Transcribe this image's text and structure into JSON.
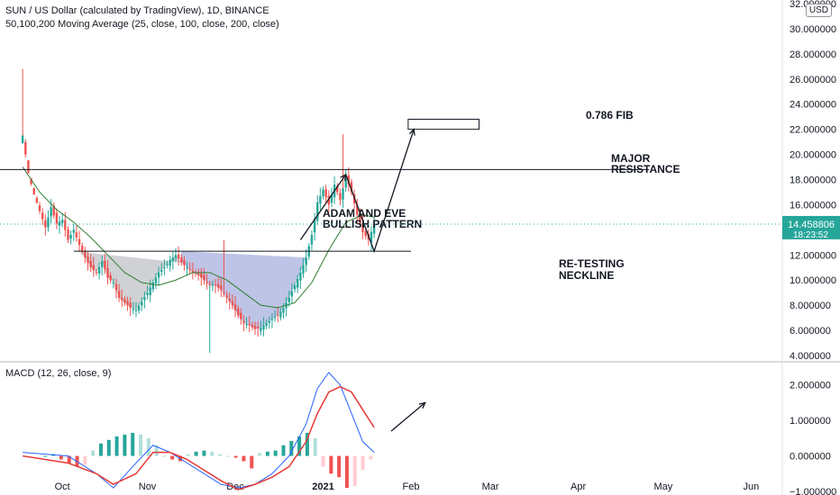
{
  "header": {
    "title": "SUN / US Dollar (calculated by TradingView), 1D, BINANCE",
    "indicator": "50,100,200 Moving Average (25, close, 100, close, 200, close)",
    "currency": "USD"
  },
  "price_tag": {
    "value": "14.458806",
    "countdown": "18:23:52"
  },
  "annotations": {
    "pattern": [
      "ADAM AND EVE",
      "BULLISH PATTERN"
    ],
    "resistance": [
      "MAJOR",
      "RESISTANCE"
    ],
    "neckline": [
      "RE-TESTING",
      "NECKLINE"
    ],
    "fib": "0.786 FIB"
  },
  "colors": {
    "up": "#26a69a",
    "down": "#ef5350",
    "ma": "#2e7d32",
    "macd": "#2962ff",
    "signal": "#e53935"
  },
  "chart_data": [
    {
      "type": "candlestick",
      "ylim": [
        3.5,
        32
      ],
      "yticks": [
        "4.000000",
        "6.000000",
        "8.000000",
        "10.000000",
        "12.000000",
        "14.000000",
        "16.000000",
        "18.000000",
        "20.000000",
        "22.000000",
        "24.000000",
        "26.000000",
        "28.000000",
        "30.000000",
        "32.000000"
      ],
      "ytick_values": [
        4,
        6,
        8,
        10,
        12,
        14,
        16,
        18,
        20,
        22,
        24,
        26,
        28,
        30,
        32
      ],
      "xticks": [
        "Oct",
        "Nov",
        "Dec",
        "2021",
        "Feb",
        "Mar",
        "Apr",
        "May",
        "Jun"
      ],
      "xtick_days": [
        8,
        38,
        69,
        100,
        131,
        159,
        190,
        220,
        251
      ],
      "x_range_days": [
        -14,
        262
      ],
      "close_path": [
        [
          -6,
          21.5
        ],
        [
          -4,
          18.5
        ],
        [
          -2,
          16.8
        ],
        [
          0,
          15.5
        ],
        [
          2,
          14.2
        ],
        [
          4,
          15.8
        ],
        [
          6,
          14.5
        ],
        [
          8,
          14.8
        ],
        [
          10,
          13.2
        ],
        [
          12,
          14.0
        ],
        [
          14,
          12.8
        ],
        [
          16,
          11.8
        ],
        [
          18,
          11.0
        ],
        [
          20,
          10.6
        ],
        [
          22,
          11.5
        ],
        [
          24,
          10.2
        ],
        [
          26,
          9.8
        ],
        [
          28,
          8.6
        ],
        [
          30,
          8.2
        ],
        [
          32,
          7.8
        ],
        [
          34,
          7.6
        ],
        [
          36,
          8.3
        ],
        [
          38,
          9.0
        ],
        [
          40,
          9.8
        ],
        [
          42,
          10.6
        ],
        [
          44,
          11.0
        ],
        [
          46,
          11.6
        ],
        [
          48,
          12.0
        ],
        [
          50,
          11.4
        ],
        [
          52,
          11.0
        ],
        [
          54,
          10.6
        ],
        [
          56,
          10.4
        ],
        [
          58,
          10.0
        ],
        [
          60,
          9.6
        ],
        [
          62,
          9.6
        ],
        [
          64,
          9.2
        ],
        [
          66,
          8.6
        ],
        [
          68,
          8.0
        ],
        [
          70,
          7.2
        ],
        [
          72,
          6.6
        ],
        [
          74,
          6.4
        ],
        [
          76,
          6.1
        ],
        [
          78,
          6.2
        ],
        [
          80,
          6.6
        ],
        [
          82,
          6.9
        ],
        [
          84,
          7.2
        ],
        [
          86,
          7.8
        ],
        [
          88,
          8.6
        ],
        [
          90,
          9.6
        ],
        [
          92,
          10.6
        ],
        [
          94,
          11.8
        ],
        [
          96,
          13.6
        ],
        [
          98,
          16.2
        ],
        [
          100,
          17.2
        ],
        [
          102,
          16.0
        ],
        [
          104,
          17.6
        ],
        [
          106,
          16.4
        ],
        [
          108,
          18.2
        ],
        [
          110,
          17.0
        ],
        [
          112,
          15.2
        ],
        [
          114,
          13.8
        ],
        [
          116,
          13.2
        ],
        [
          118,
          14.46
        ]
      ],
      "spikes": [
        {
          "day": -6,
          "high": 26.8
        },
        {
          "day": 107,
          "high": 21.6
        },
        {
          "day": 65,
          "high": 13.2
        },
        {
          "day": 60,
          "low": 4.2
        }
      ],
      "moving_average": [
        [
          -6,
          19.0
        ],
        [
          0,
          17.0
        ],
        [
          6,
          15.6
        ],
        [
          12,
          14.6
        ],
        [
          18,
          13.4
        ],
        [
          24,
          12.0
        ],
        [
          30,
          10.6
        ],
        [
          36,
          9.8
        ],
        [
          42,
          9.6
        ],
        [
          48,
          10.0
        ],
        [
          54,
          10.6
        ],
        [
          60,
          10.6
        ],
        [
          66,
          10.0
        ],
        [
          72,
          9.0
        ],
        [
          78,
          8.0
        ],
        [
          84,
          7.8
        ],
        [
          90,
          8.2
        ],
        [
          96,
          9.8
        ],
        [
          102,
          12.4
        ],
        [
          108,
          14.6
        ],
        [
          114,
          15.2
        ],
        [
          118,
          15.0
        ]
      ],
      "lines": [
        {
          "y": 18.8,
          "day_start": -15,
          "day_end": 215
        },
        {
          "y": 12.3,
          "day_start": 12,
          "day_end": 131
        }
      ],
      "fib_box": {
        "y_low": 22.0,
        "y_high": 22.8,
        "day_start": 130,
        "day_end": 155
      }
    },
    {
      "type": "macd",
      "title": "MACD (12, 26, close, 9)",
      "ylim": [
        -1.05,
        2.6
      ],
      "yticks": [
        "2.000000",
        "1.000000",
        "0.000000",
        "−1.000000"
      ],
      "ytick_values": [
        2,
        1,
        0,
        -1
      ],
      "macd": [
        [
          -6,
          0.1
        ],
        [
          10,
          0.0
        ],
        [
          20,
          -0.5
        ],
        [
          26,
          -0.9
        ],
        [
          34,
          -0.2
        ],
        [
          40,
          0.3
        ],
        [
          46,
          0.1
        ],
        [
          52,
          -0.2
        ],
        [
          58,
          -0.5
        ],
        [
          64,
          -0.8
        ],
        [
          70,
          -0.9
        ],
        [
          76,
          -0.8
        ],
        [
          82,
          -0.5
        ],
        [
          88,
          0.0
        ],
        [
          94,
          0.9
        ],
        [
          98,
          1.9
        ],
        [
          102,
          2.35
        ],
        [
          106,
          2.0
        ],
        [
          110,
          1.2
        ],
        [
          114,
          0.4
        ],
        [
          118,
          0.1
        ]
      ],
      "signal": [
        [
          -6,
          0.0
        ],
        [
          10,
          -0.2
        ],
        [
          20,
          -0.5
        ],
        [
          26,
          -0.8
        ],
        [
          34,
          -0.5
        ],
        [
          40,
          0.1
        ],
        [
          46,
          0.1
        ],
        [
          52,
          -0.1
        ],
        [
          58,
          -0.4
        ],
        [
          64,
          -0.7
        ],
        [
          70,
          -0.95
        ],
        [
          76,
          -0.8
        ],
        [
          82,
          -0.6
        ],
        [
          88,
          -0.3
        ],
        [
          94,
          0.4
        ],
        [
          98,
          1.2
        ],
        [
          102,
          1.8
        ],
        [
          106,
          1.95
        ],
        [
          110,
          1.8
        ],
        [
          114,
          1.3
        ],
        [
          118,
          0.8
        ]
      ],
      "histogram": [
        0.0,
        0.05,
        -0.1,
        -0.2,
        -0.3,
        -0.25,
        0.15,
        0.35,
        0.45,
        0.55,
        0.6,
        0.65,
        0.6,
        0.5,
        0.3,
        0.0,
        -0.1,
        -0.15,
        0.05,
        0.12,
        0.15,
        0.12,
        0.05,
        0.0,
        -0.05,
        -0.15,
        -0.35,
        0.08,
        0.12,
        0.15,
        0.3,
        0.42,
        0.55,
        0.65,
        0.5,
        -0.3,
        -0.5,
        -0.6,
        -0.9,
        -0.85,
        -0.4,
        -0.1
      ],
      "histogram_start_day": 2,
      "histogram_step_days": 2.8
    }
  ]
}
